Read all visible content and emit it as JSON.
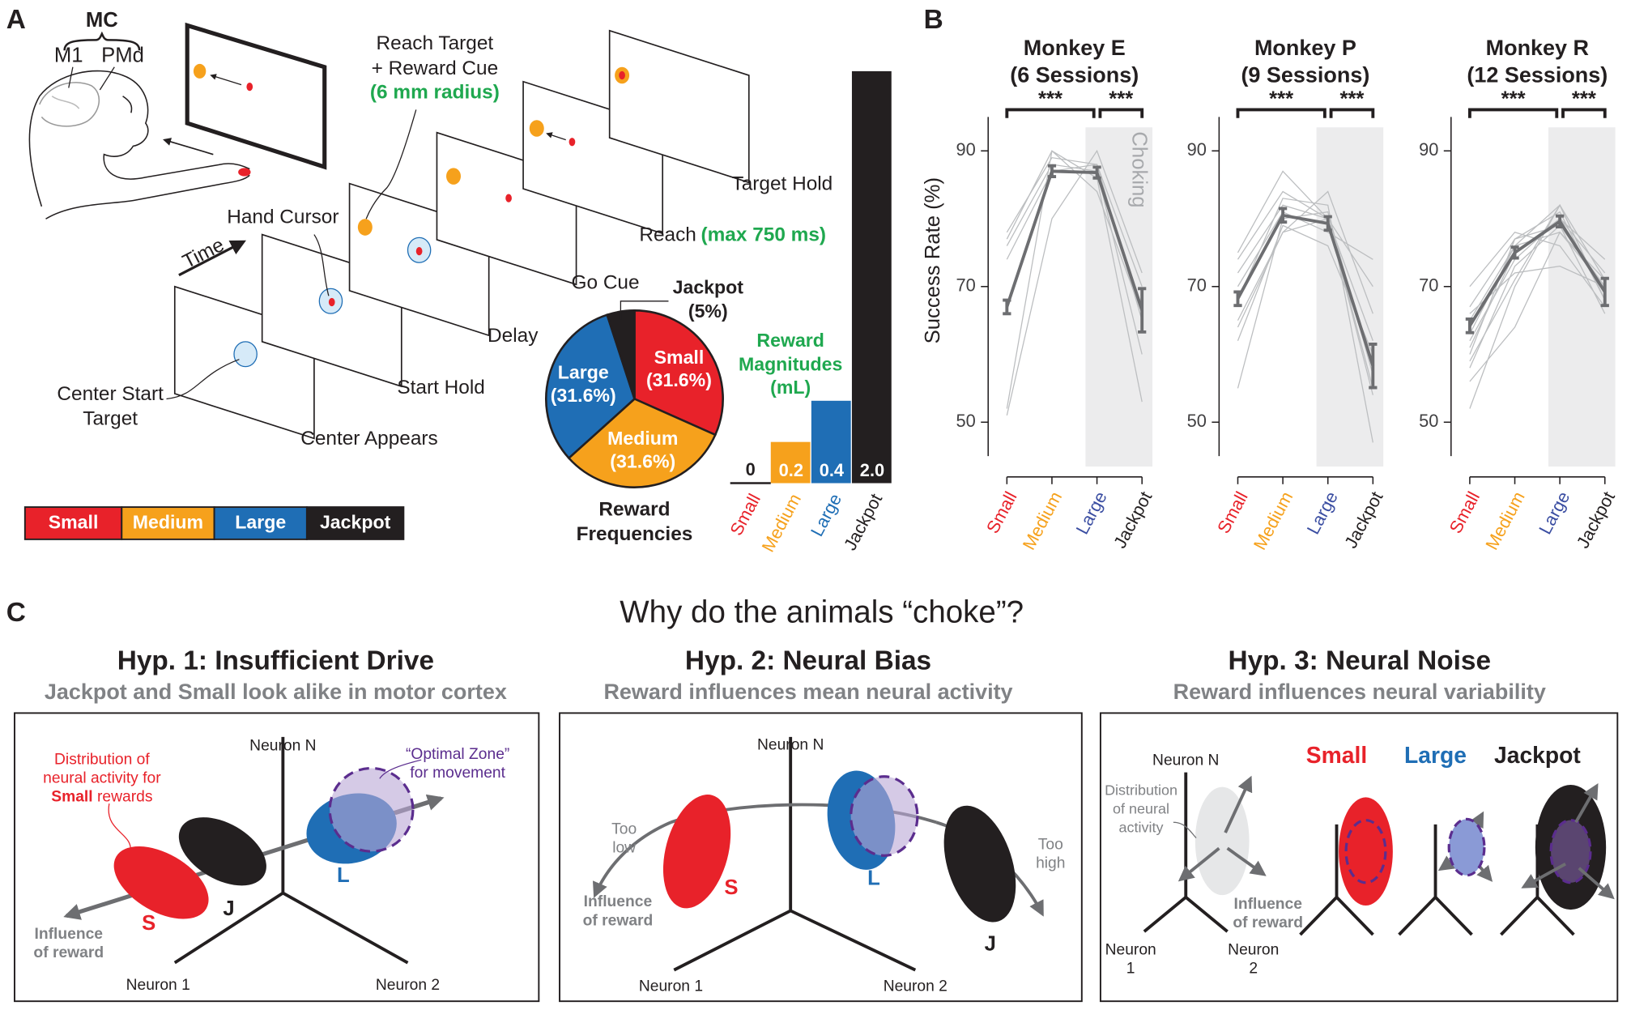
{
  "panel_labels": [
    "A",
    "B",
    "C"
  ],
  "panel_a": {
    "mc": "MC",
    "m1": "M1",
    "pmd": "PMd",
    "reach_target": [
      "Reach Target",
      "+ Reward Cue"
    ],
    "reach_target_note": "(6 mm radius)",
    "hand_cursor": "Hand Cursor",
    "time": "Time",
    "center_start": [
      "Center Start",
      "Target"
    ],
    "stages": [
      "Center Appears",
      "Start Hold",
      "Delay",
      "Go Cue",
      "Reach",
      "Target Hold"
    ],
    "reach_note": "(max 750 ms)"
  },
  "chart_data": [
    {
      "type": "pie",
      "title": [
        "Reward",
        "Frequencies"
      ],
      "categories": [
        "Small",
        "Medium",
        "Large",
        "Jackpot"
      ],
      "values": [
        31.6,
        31.6,
        31.6,
        5
      ],
      "value_labels": [
        "(31.6%)",
        "(31.6%)",
        "(31.6%)",
        "(5%)"
      ],
      "colors": [
        "#e8222a",
        "#f6a11c",
        "#1f6eb5",
        "#231f20"
      ]
    },
    {
      "type": "bar",
      "title": [
        "Reward",
        "Magnitudes"
      ],
      "subtitle": "(mL)",
      "categories": [
        "Small",
        "Medium",
        "Large",
        "Jackpot"
      ],
      "values": [
        0,
        0.2,
        0.4,
        2.0
      ],
      "value_labels": [
        "0",
        "0.2",
        "0.4",
        "2.0"
      ],
      "colors": [
        "#e8222a",
        "#f6a11c",
        "#1f6eb5",
        "#231f20"
      ]
    },
    {
      "type": "line",
      "title": "Monkey E",
      "subtitle": "(6 Sessions)",
      "ylabel": "Success Rate (%)",
      "categories": [
        "Small",
        "Medium",
        "Large",
        "Jackpot"
      ],
      "category_colors": [
        "#e8222a",
        "#f6a11c",
        "#3b4ea2",
        "#231f20"
      ],
      "ylim": [
        45,
        95
      ],
      "yticks": [
        50,
        70,
        90
      ],
      "color": "#6d6e71",
      "values": [
        67,
        87,
        86.8,
        66.5
      ],
      "errors": [
        1,
        0.8,
        0.8,
        3.2
      ],
      "sessions": [
        [
          78,
          89,
          88,
          70
        ],
        [
          76,
          88,
          87,
          60
        ],
        [
          52,
          90,
          86,
          53
        ],
        [
          51,
          80,
          90,
          72
        ],
        [
          74,
          87,
          88,
          65
        ],
        [
          77,
          90,
          84,
          66
        ]
      ],
      "significance": [
        "***",
        "***"
      ],
      "shaded_label": "Choking"
    },
    {
      "type": "line",
      "title": "Monkey P",
      "subtitle": "(9 Sessions)",
      "categories": [
        "Small",
        "Medium",
        "Large",
        "Jackpot"
      ],
      "category_colors": [
        "#e8222a",
        "#f6a11c",
        "#3b4ea2",
        "#231f20"
      ],
      "ylim": [
        45,
        95
      ],
      "yticks": [
        50,
        70,
        90
      ],
      "color": "#6d6e71",
      "values": [
        68.2,
        80.5,
        79.3,
        58.3
      ],
      "errors": [
        1,
        1,
        1,
        3.2
      ],
      "sessions": [
        [
          75,
          87,
          80,
          62
        ],
        [
          68,
          83,
          82,
          47
        ],
        [
          55,
          80,
          81,
          57
        ],
        [
          72,
          82,
          80,
          55
        ],
        [
          65,
          78,
          84,
          66
        ],
        [
          70,
          81,
          78,
          74
        ],
        [
          62,
          79,
          76,
          60
        ],
        [
          74,
          84,
          80,
          70
        ],
        [
          64,
          78,
          80,
          54
        ]
      ],
      "significance": [
        "***",
        "***"
      ]
    },
    {
      "type": "line",
      "title": "Monkey R",
      "subtitle": "(12 Sessions)",
      "categories": [
        "Small",
        "Medium",
        "Large",
        "Jackpot"
      ],
      "category_colors": [
        "#e8222a",
        "#f6a11c",
        "#3b4ea2",
        "#231f20"
      ],
      "ylim": [
        45,
        95
      ],
      "yticks": [
        50,
        70,
        90
      ],
      "color": "#6d6e71",
      "values": [
        64.2,
        75,
        79.6,
        69.2
      ],
      "errors": [
        1,
        0.8,
        0.8,
        2
      ],
      "sessions": [
        [
          58,
          73,
          79,
          70
        ],
        [
          52,
          70,
          82,
          68
        ],
        [
          67,
          77,
          81,
          68
        ],
        [
          62,
          74,
          80,
          72
        ],
        [
          60,
          77,
          79,
          66
        ],
        [
          65,
          76,
          78,
          70
        ],
        [
          56,
          64,
          78,
          71
        ],
        [
          70,
          78,
          76,
          67
        ],
        [
          66,
          72,
          73,
          70
        ],
        [
          63,
          76,
          82,
          68
        ],
        [
          61,
          75,
          80,
          74
        ],
        [
          59,
          71,
          82,
          71
        ]
      ],
      "significance": [
        "***",
        "***"
      ]
    }
  ],
  "panel_c": {
    "title": "Why do the animals “choke”?",
    "hyp1": {
      "title": "Hyp. 1: Insufficient Drive",
      "subtitle": "Jackpot and Small look alike in motor cortex",
      "neuron_n": "Neuron N",
      "neuron_1": "Neuron 1",
      "neuron_2": "Neuron 2",
      "distribution": [
        "Distribution of",
        "neural activity for"
      ],
      "small_bold": "Small",
      "rewards": "rewards",
      "optimal": [
        "“Optimal Zone”",
        "for movement"
      ],
      "influence": [
        "Influence",
        "of reward"
      ],
      "s": "S",
      "j": "J",
      "l": "L"
    },
    "hyp2": {
      "title": "Hyp. 2: Neural Bias",
      "subtitle": "Reward influences mean neural activity",
      "neuron_n": "Neuron N",
      "neuron_1": "Neuron 1",
      "neuron_2": "Neuron 2",
      "too_low": [
        "Too",
        "low"
      ],
      "too_high": [
        "Too",
        "high"
      ],
      "influence": [
        "Influence",
        "of reward"
      ],
      "s": "S",
      "l": "L",
      "j": "J"
    },
    "hyp3": {
      "title": "Hyp. 3: Neural Noise",
      "subtitle": "Reward influences neural variability",
      "neuron_n": "Neuron N",
      "neuron_1": [
        "Neuron",
        "1"
      ],
      "neuron_2": [
        "Neuron",
        "2"
      ],
      "distribution": [
        "Distribution",
        "of neural",
        "activity"
      ],
      "influence": [
        "Influence",
        "of reward"
      ],
      "headers": [
        "Small",
        "Large",
        "Jackpot"
      ]
    }
  }
}
